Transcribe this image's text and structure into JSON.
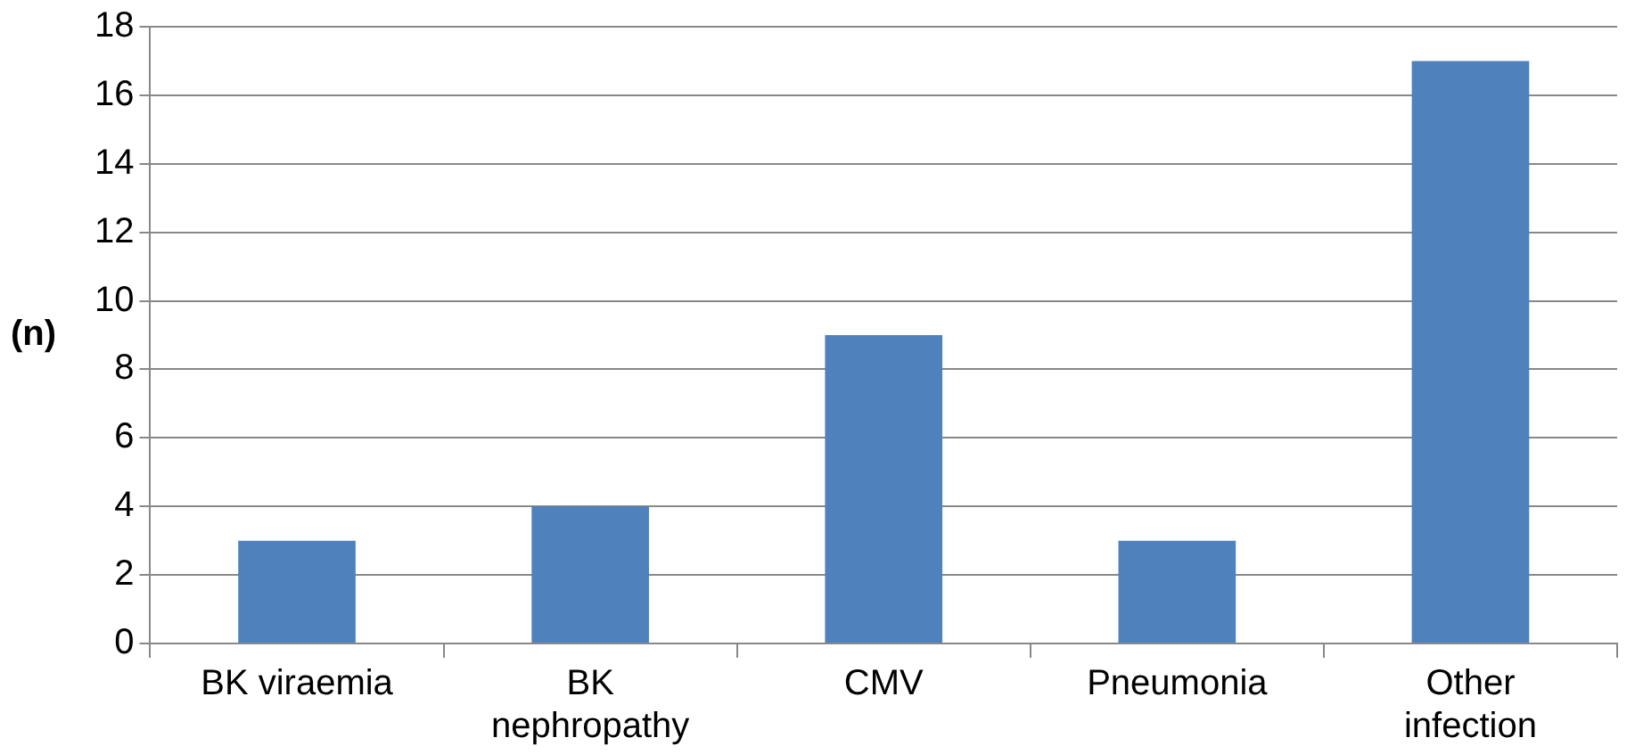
{
  "chart_data": {
    "type": "bar",
    "ylabel": "(n)",
    "categories": [
      "BK viraemia",
      "BK nephropathy",
      "CMV",
      "Pneumonia",
      "Other infection"
    ],
    "values": [
      3,
      4,
      9,
      3,
      17
    ],
    "color": "#4f81bd",
    "ylim": [
      0,
      18
    ],
    "yticks": [
      0,
      2,
      4,
      6,
      8,
      10,
      12,
      14,
      16,
      18
    ],
    "grid": "y",
    "legend": false
  }
}
